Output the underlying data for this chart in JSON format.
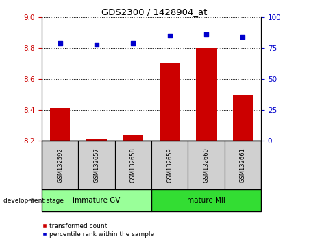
{
  "title": "GDS2300 / 1428904_at",
  "samples": [
    "GSM132592",
    "GSM132657",
    "GSM132658",
    "GSM132659",
    "GSM132660",
    "GSM132661"
  ],
  "bar_values": [
    8.41,
    8.215,
    8.235,
    8.7,
    8.8,
    8.5
  ],
  "scatter_values": [
    8.83,
    8.82,
    8.83,
    8.88,
    8.89,
    8.87
  ],
  "ylim_left": [
    8.2,
    9.0
  ],
  "ylim_right": [
    0,
    100
  ],
  "yticks_left": [
    8.2,
    8.4,
    8.6,
    8.8,
    9.0
  ],
  "yticks_right": [
    0,
    25,
    50,
    75,
    100
  ],
  "bar_color": "#cc0000",
  "scatter_color": "#0000cc",
  "bar_base": 8.2,
  "group_labels": [
    "immature GV",
    "mature MII"
  ],
  "group_ranges": [
    [
      0,
      3
    ],
    [
      3,
      6
    ]
  ],
  "group_colors": [
    "#99ff99",
    "#33dd33"
  ],
  "dev_stage_label": "development stage",
  "legend_bar": "transformed count",
  "legend_scatter": "percentile rank within the sample",
  "tick_color_left": "#cc0000",
  "tick_color_right": "#0000cc",
  "plot_bg": "#ffffff",
  "label_bg": "#d0d0d0"
}
